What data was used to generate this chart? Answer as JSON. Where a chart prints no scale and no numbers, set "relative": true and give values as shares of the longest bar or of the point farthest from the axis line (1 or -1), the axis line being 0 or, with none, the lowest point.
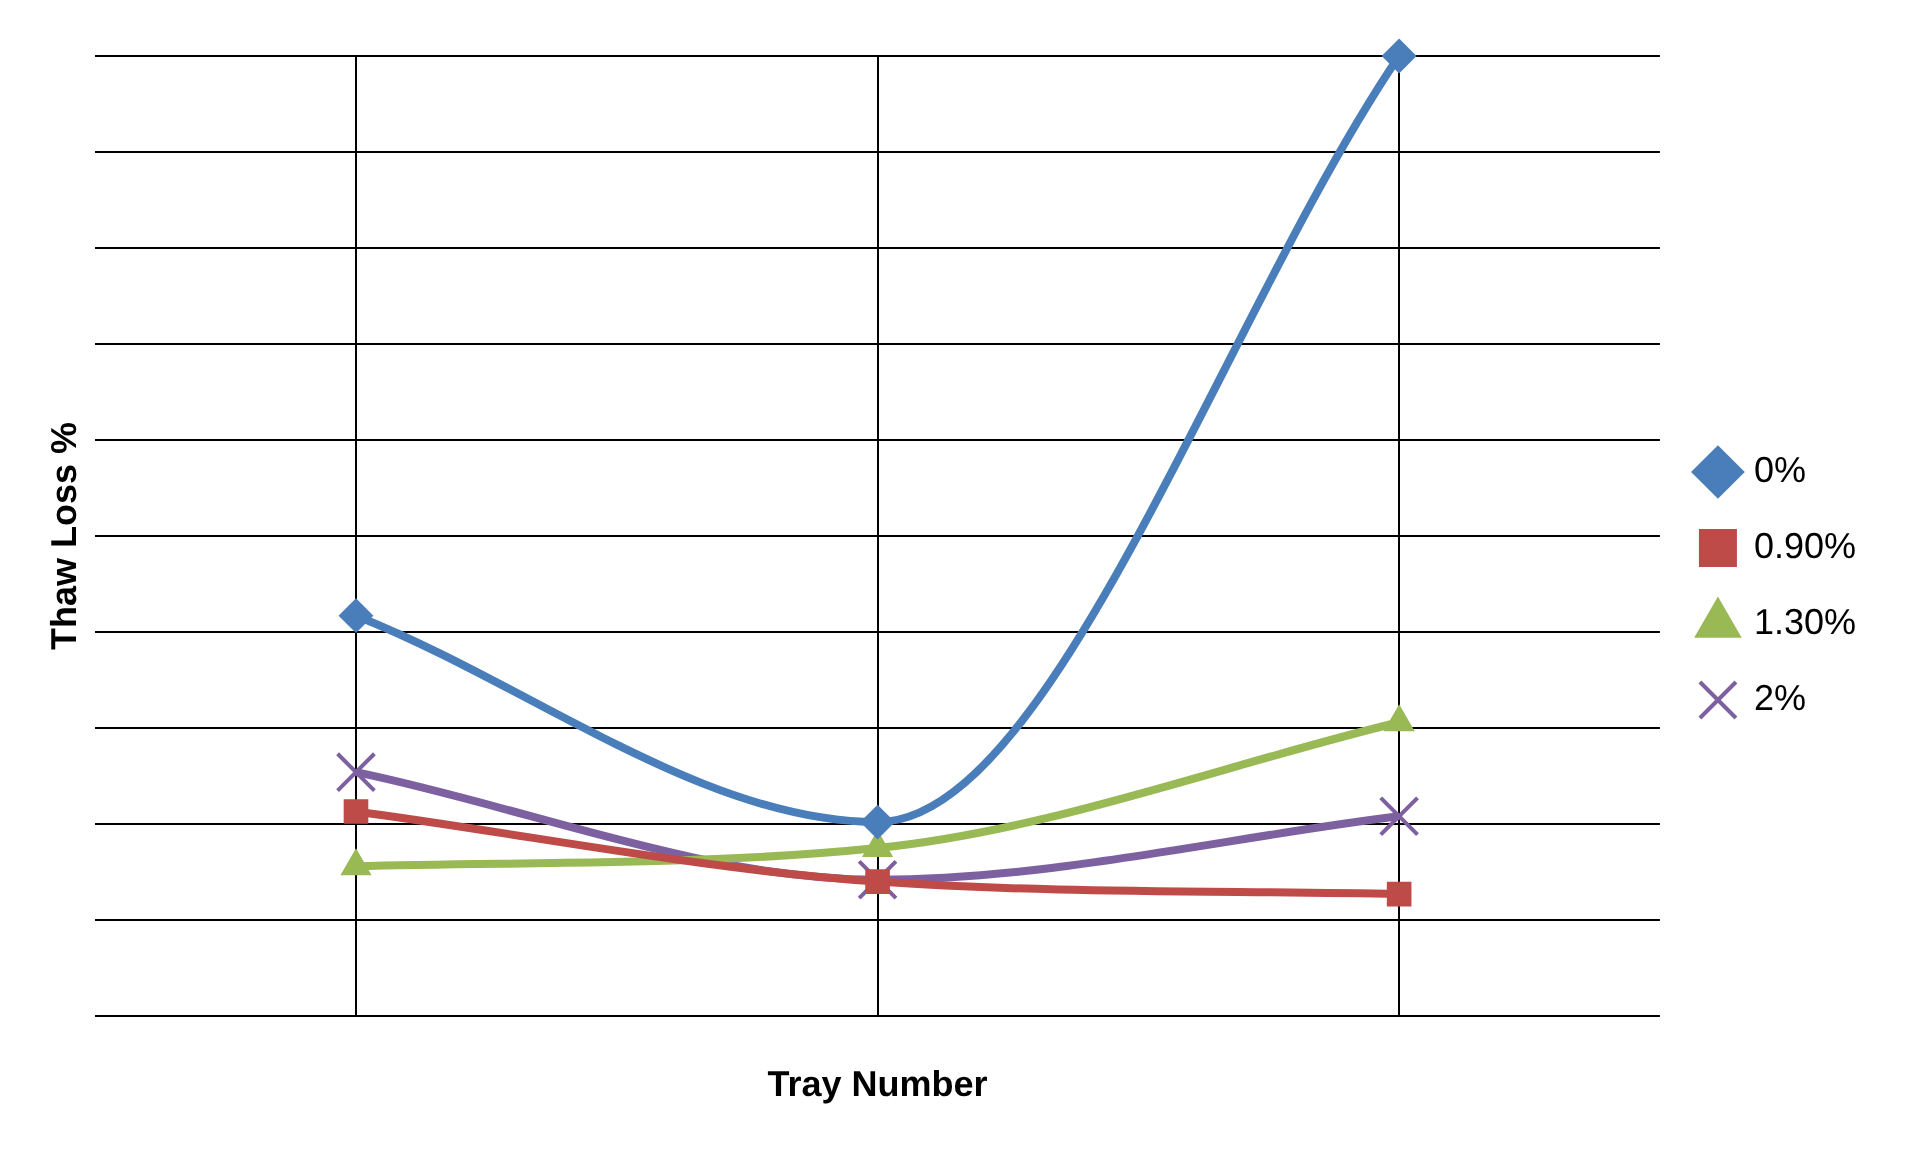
{
  "chart_data": {
    "type": "line",
    "relative": true,
    "xlabel": "Tray Number",
    "ylabel": "Thaw Loss %",
    "categories": [
      null,
      null,
      null
    ],
    "grid": true,
    "legend": "right",
    "series": [
      {
        "name": "0%",
        "color": "#4a7ebb",
        "marker": "diamond",
        "values": [
          0.417,
          0.202,
          1
        ]
      },
      {
        "name": "0.90%",
        "color": "#be4b48",
        "marker": "square",
        "values": [
          0.213,
          0.14,
          0.127
        ]
      },
      {
        "name": "1.30%",
        "color": "#98b954",
        "marker": "triangle",
        "values": [
          0.156,
          0.175,
          0.306
        ]
      },
      {
        "name": "2%",
        "color": "#7d60a0",
        "marker": "cross",
        "values": [
          0.254,
          0.142,
          0.208
        ]
      }
    ]
  }
}
